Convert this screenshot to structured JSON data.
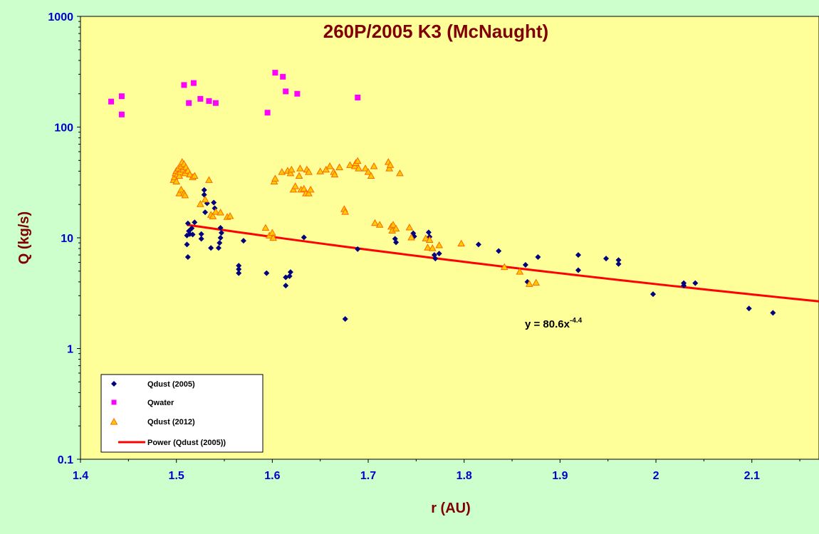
{
  "chart_data": {
    "type": "scatter",
    "title": "260P/2005 K3 (McNaught)",
    "xlabel": "r (AU)",
    "ylabel": "Q (kg/s)",
    "xlim": [
      1.4,
      2.17
    ],
    "ylim": [
      0.1,
      1000
    ],
    "y_scale": "log",
    "x_ticks": [
      "1.4",
      "1.5",
      "1.6",
      "1.7",
      "1.8",
      "1.9",
      "2",
      "2.1"
    ],
    "y_ticks": [
      "0.1",
      "1",
      "10",
      "100",
      "1000"
    ],
    "grid": false,
    "legend_position": "bottom-left",
    "equation": {
      "text": "y = 80.6x",
      "exponent": "-4.4"
    },
    "colors": {
      "figure_background": "#ccffcc",
      "plot_background": "#ffff99",
      "title": "#800000",
      "axis_title": "#800000",
      "tick_label": "#0000cc",
      "qdust_2005": "#000080",
      "qwater": "#ff00ff",
      "qdust_2012_fill": "#ffcc00",
      "qdust_2012_stroke": "#ff6600",
      "fit": "#ff0000"
    },
    "series": [
      {
        "name": "Qdust (2005)",
        "marker": "diamond",
        "points": [
          [
            1.512,
            13.5
          ],
          [
            1.513,
            11.5
          ],
          [
            1.511,
            10.5
          ],
          [
            1.514,
            10.8
          ],
          [
            1.516,
            12.2
          ],
          [
            1.517,
            10.7
          ],
          [
            1.519,
            13.8
          ],
          [
            1.511,
            8.7
          ],
          [
            1.512,
            6.7
          ],
          [
            1.526,
            10.8
          ],
          [
            1.526,
            9.8
          ],
          [
            1.529,
            27.0
          ],
          [
            1.529,
            24.5
          ],
          [
            1.53,
            17.0
          ],
          [
            1.532,
            20.5
          ],
          [
            1.536,
            8.1
          ],
          [
            1.539,
            20.8
          ],
          [
            1.54,
            18.5
          ],
          [
            1.544,
            8.1
          ],
          [
            1.545,
            9.0
          ],
          [
            1.546,
            10.0
          ],
          [
            1.547,
            11.1
          ],
          [
            1.546,
            12.3
          ],
          [
            1.565,
            5.6
          ],
          [
            1.565,
            5.2
          ],
          [
            1.565,
            4.8
          ],
          [
            1.57,
            9.4
          ],
          [
            1.594,
            4.8
          ],
          [
            1.614,
            4.4
          ],
          [
            1.614,
            3.7
          ],
          [
            1.618,
            4.5
          ],
          [
            1.619,
            4.9
          ],
          [
            1.633,
            10.1
          ],
          [
            1.676,
            1.85
          ],
          [
            1.689,
            7.9
          ],
          [
            1.728,
            9.8
          ],
          [
            1.729,
            9.1
          ],
          [
            1.747,
            11.0
          ],
          [
            1.748,
            10.3
          ],
          [
            1.763,
            11.2
          ],
          [
            1.764,
            10.2
          ],
          [
            1.769,
            7.0
          ],
          [
            1.77,
            6.5
          ],
          [
            1.774,
            7.2
          ],
          [
            1.815,
            8.7
          ],
          [
            1.836,
            7.6
          ],
          [
            1.864,
            5.7
          ],
          [
            1.866,
            4.0
          ],
          [
            1.877,
            6.7
          ],
          [
            1.919,
            7.0
          ],
          [
            1.919,
            5.1
          ],
          [
            1.948,
            6.5
          ],
          [
            1.961,
            6.3
          ],
          [
            1.961,
            5.8
          ],
          [
            1.997,
            3.1
          ],
          [
            2.029,
            3.7
          ],
          [
            2.029,
            3.9
          ],
          [
            2.041,
            3.9
          ],
          [
            2.097,
            2.3
          ],
          [
            2.122,
            2.1
          ]
        ]
      },
      {
        "name": "Qwater",
        "marker": "square",
        "points": [
          [
            1.432,
            170
          ],
          [
            1.443,
            190
          ],
          [
            1.443,
            130
          ],
          [
            1.508,
            240
          ],
          [
            1.513,
            165
          ],
          [
            1.518,
            250
          ],
          [
            1.525,
            180
          ],
          [
            1.534,
            172
          ],
          [
            1.541,
            165
          ],
          [
            1.595,
            135
          ],
          [
            1.603,
            310
          ],
          [
            1.611,
            285
          ],
          [
            1.614,
            210
          ],
          [
            1.626,
            200
          ],
          [
            1.689,
            185
          ]
        ]
      },
      {
        "name": "Qdust (2012)",
        "marker": "triangle",
        "points": [
          [
            1.497,
            33
          ],
          [
            1.498,
            35
          ],
          [
            1.499,
            38
          ],
          [
            1.5,
            40
          ],
          [
            1.501,
            37
          ],
          [
            1.502,
            42
          ],
          [
            1.503,
            36
          ],
          [
            1.504,
            39
          ],
          [
            1.505,
            44
          ],
          [
            1.506,
            48
          ],
          [
            1.507,
            41
          ],
          [
            1.508,
            46
          ],
          [
            1.509,
            38
          ],
          [
            1.51,
            43
          ],
          [
            1.512,
            40
          ],
          [
            1.514,
            37
          ],
          [
            1.517,
            35
          ],
          [
            1.519,
            36
          ],
          [
            1.5,
            32
          ],
          [
            1.503,
            25
          ],
          [
            1.505,
            27
          ],
          [
            1.508,
            25
          ],
          [
            1.509,
            24
          ],
          [
            1.525,
            20
          ],
          [
            1.53,
            22
          ],
          [
            1.534,
            33
          ],
          [
            1.536,
            16
          ],
          [
            1.538,
            15.5
          ],
          [
            1.541,
            17
          ],
          [
            1.546,
            16.8
          ],
          [
            1.553,
            15.3
          ],
          [
            1.556,
            15.6
          ],
          [
            1.593,
            12.2
          ],
          [
            1.597,
            10.4
          ],
          [
            1.6,
            11
          ],
          [
            1.601,
            9.9
          ],
          [
            1.602,
            32
          ],
          [
            1.603,
            34
          ],
          [
            1.61,
            39
          ],
          [
            1.616,
            40
          ],
          [
            1.619,
            38
          ],
          [
            1.62,
            41
          ],
          [
            1.622,
            27
          ],
          [
            1.624,
            29
          ],
          [
            1.628,
            36
          ],
          [
            1.629,
            42
          ],
          [
            1.63,
            27
          ],
          [
            1.633,
            27.5
          ],
          [
            1.635,
            25
          ],
          [
            1.636,
            41
          ],
          [
            1.638,
            39
          ],
          [
            1.638,
            25
          ],
          [
            1.64,
            27
          ],
          [
            1.65,
            39.5
          ],
          [
            1.656,
            41
          ],
          [
            1.66,
            44
          ],
          [
            1.664,
            39
          ],
          [
            1.665,
            37
          ],
          [
            1.67,
            43
          ],
          [
            1.675,
            18
          ],
          [
            1.676,
            17
          ],
          [
            1.681,
            45
          ],
          [
            1.686,
            44
          ],
          [
            1.687,
            47
          ],
          [
            1.689,
            49
          ],
          [
            1.69,
            42
          ],
          [
            1.697,
            42
          ],
          [
            1.7,
            39
          ],
          [
            1.703,
            36
          ],
          [
            1.706,
            44
          ],
          [
            1.707,
            13.5
          ],
          [
            1.712,
            13
          ],
          [
            1.721,
            48
          ],
          [
            1.722,
            42
          ],
          [
            1.723,
            45
          ],
          [
            1.724,
            12.5
          ],
          [
            1.725,
            11.5
          ],
          [
            1.726,
            13
          ],
          [
            1.729,
            12
          ],
          [
            1.733,
            38
          ],
          [
            1.743,
            12.3
          ],
          [
            1.745,
            10
          ],
          [
            1.76,
            9.8
          ],
          [
            1.762,
            8.1
          ],
          [
            1.764,
            9.5
          ],
          [
            1.767,
            8.0
          ],
          [
            1.774,
            8.5
          ],
          [
            1.797,
            8.8
          ],
          [
            1.842,
            5.4
          ],
          [
            1.858,
            4.9
          ],
          [
            1.868,
            3.8
          ],
          [
            1.875,
            3.9
          ]
        ]
      }
    ],
    "fit": {
      "name": "Power (Qdust (2005))",
      "a": 80.6,
      "b": -4.4,
      "x_range": [
        1.511,
        2.17
      ]
    }
  }
}
